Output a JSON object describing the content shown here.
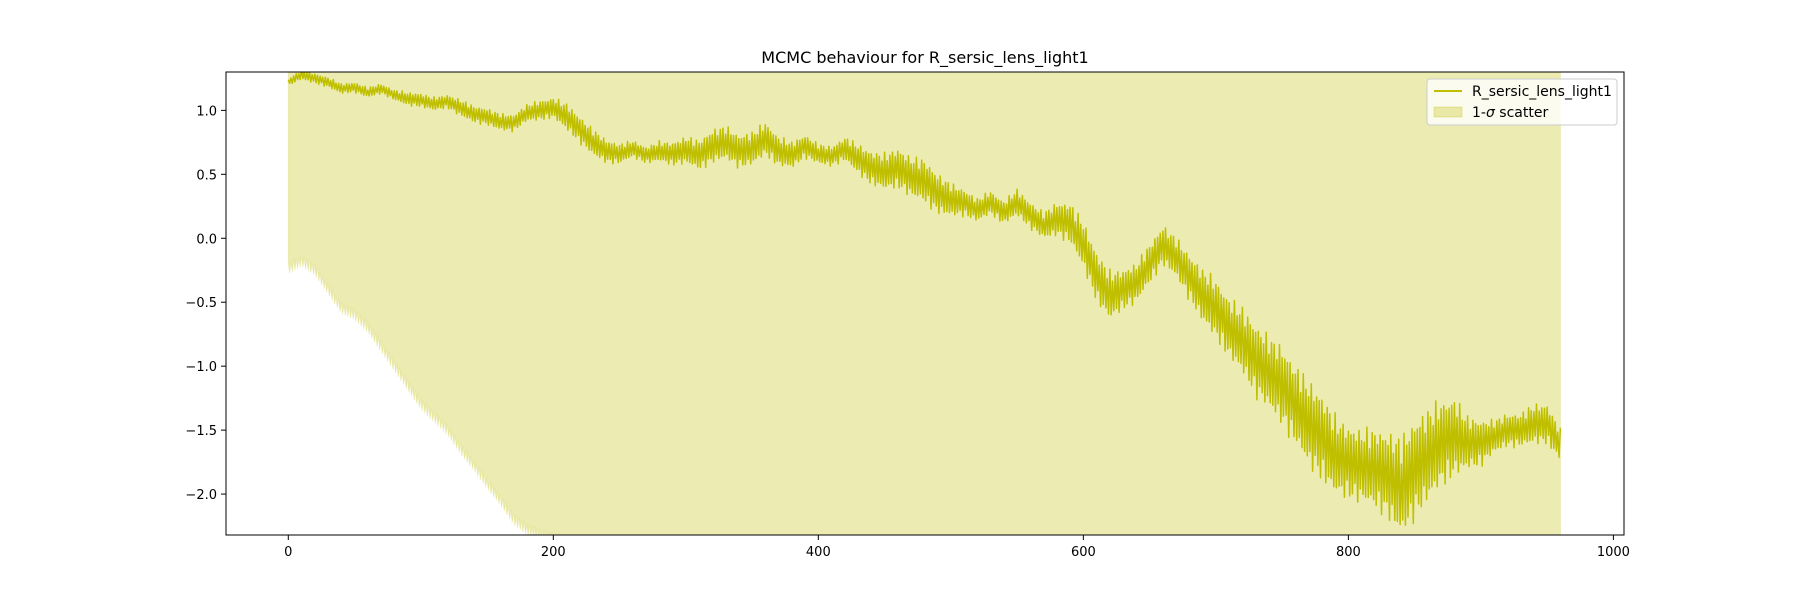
{
  "chart_data": {
    "type": "line",
    "title": "MCMC behaviour for R_sersic_lens_light1",
    "xlabel": "",
    "ylabel": "",
    "xlim": [
      -47,
      1008
    ],
    "ylim": [
      -2.32,
      1.3
    ],
    "x_ticks": [
      0,
      200,
      400,
      600,
      800,
      1000
    ],
    "x_tick_labels": [
      "0",
      "200",
      "400",
      "600",
      "800",
      "1000"
    ],
    "y_ticks": [
      1.0,
      0.5,
      0.0,
      -0.5,
      -1.0,
      -1.5,
      -2.0
    ],
    "y_tick_labels": [
      "1.0",
      "0.5",
      "0.0",
      "−0.5",
      "−1.0",
      "−1.5",
      "−2.0"
    ],
    "grid": false,
    "legend_position": "top-right",
    "series": [
      {
        "name": "R_sersic_lens_light1",
        "kind": "line",
        "color": "#bfbf00",
        "x": [
          0,
          10,
          20,
          30,
          40,
          50,
          60,
          70,
          80,
          90,
          100,
          110,
          120,
          130,
          140,
          150,
          160,
          170,
          180,
          190,
          200,
          210,
          220,
          230,
          240,
          250,
          260,
          270,
          280,
          290,
          300,
          310,
          320,
          330,
          340,
          350,
          360,
          370,
          380,
          390,
          400,
          410,
          420,
          430,
          440,
          450,
          460,
          470,
          480,
          490,
          500,
          510,
          520,
          530,
          540,
          550,
          560,
          570,
          580,
          590,
          600,
          610,
          620,
          630,
          640,
          650,
          660,
          670,
          680,
          690,
          700,
          710,
          720,
          730,
          740,
          750,
          760,
          770,
          780,
          790,
          800,
          810,
          820,
          830,
          840,
          850,
          860,
          870,
          880,
          890,
          900,
          910,
          920,
          930,
          940,
          950,
          960
        ],
        "y": [
          1.22,
          1.28,
          1.25,
          1.22,
          1.17,
          1.18,
          1.14,
          1.17,
          1.12,
          1.09,
          1.08,
          1.05,
          1.07,
          1.02,
          0.97,
          0.95,
          0.91,
          0.9,
          0.98,
          1.0,
          1.02,
          0.95,
          0.85,
          0.75,
          0.68,
          0.66,
          0.7,
          0.65,
          0.68,
          0.66,
          0.69,
          0.65,
          0.72,
          0.75,
          0.68,
          0.7,
          0.78,
          0.68,
          0.65,
          0.72,
          0.66,
          0.64,
          0.7,
          0.62,
          0.55,
          0.52,
          0.55,
          0.48,
          0.45,
          0.35,
          0.3,
          0.28,
          0.22,
          0.28,
          0.2,
          0.28,
          0.18,
          0.1,
          0.15,
          0.12,
          -0.05,
          -0.3,
          -0.45,
          -0.4,
          -0.35,
          -0.2,
          -0.05,
          -0.15,
          -0.3,
          -0.45,
          -0.55,
          -0.7,
          -0.8,
          -0.95,
          -1.05,
          -1.15,
          -1.3,
          -1.45,
          -1.55,
          -1.7,
          -1.75,
          -1.78,
          -1.8,
          -1.85,
          -1.95,
          -1.8,
          -1.7,
          -1.6,
          -1.55,
          -1.6,
          -1.6,
          -1.55,
          -1.5,
          -1.5,
          -1.45,
          -1.45,
          -1.62
        ],
        "oscillation_amplitude": [
          0.02,
          0.03,
          0.03,
          0.03,
          0.03,
          0.03,
          0.03,
          0.03,
          0.03,
          0.04,
          0.04,
          0.04,
          0.04,
          0.05,
          0.05,
          0.05,
          0.05,
          0.05,
          0.05,
          0.06,
          0.06,
          0.08,
          0.08,
          0.08,
          0.07,
          0.06,
          0.05,
          0.05,
          0.06,
          0.07,
          0.08,
          0.09,
          0.1,
          0.1,
          0.1,
          0.1,
          0.1,
          0.09,
          0.08,
          0.07,
          0.06,
          0.06,
          0.07,
          0.09,
          0.1,
          0.11,
          0.12,
          0.12,
          0.13,
          0.12,
          0.1,
          0.08,
          0.07,
          0.07,
          0.07,
          0.08,
          0.08,
          0.08,
          0.1,
          0.12,
          0.14,
          0.15,
          0.15,
          0.12,
          0.12,
          0.12,
          0.12,
          0.12,
          0.14,
          0.16,
          0.18,
          0.18,
          0.2,
          0.22,
          0.22,
          0.24,
          0.24,
          0.26,
          0.26,
          0.24,
          0.22,
          0.22,
          0.24,
          0.26,
          0.3,
          0.3,
          0.28,
          0.26,
          0.24,
          0.16,
          0.14,
          0.1,
          0.1,
          0.1,
          0.12,
          0.12,
          0.1
        ]
      },
      {
        "name": "1-σ scatter",
        "kind": "band",
        "color": "#bfbf00",
        "alpha": 0.3,
        "x": [
          0,
          10,
          20,
          30,
          40,
          50,
          60,
          70,
          80,
          90,
          100,
          110,
          120,
          130,
          140,
          150,
          160,
          170,
          180,
          190,
          200,
          960
        ],
        "lower": [
          -0.24,
          -0.18,
          -0.25,
          -0.4,
          -0.55,
          -0.6,
          -0.7,
          -0.85,
          -1.0,
          -1.15,
          -1.3,
          -1.4,
          -1.5,
          -1.65,
          -1.78,
          -1.92,
          -2.05,
          -2.2,
          -2.28,
          -2.32,
          -2.35,
          -2.35
        ],
        "upper": [
          1.3,
          1.3,
          1.3,
          1.3,
          1.3,
          1.3,
          1.3,
          1.3,
          1.3,
          1.3,
          1.3,
          1.3,
          1.3,
          1.3,
          1.3,
          1.3,
          1.3,
          1.3,
          1.3,
          1.3,
          1.3,
          1.3
        ]
      }
    ]
  },
  "legend": {
    "line_label": "R_sersic_lens_light1",
    "band_label_prefix": "1-",
    "band_label_sigma": "σ",
    "band_label_suffix": " scatter"
  }
}
